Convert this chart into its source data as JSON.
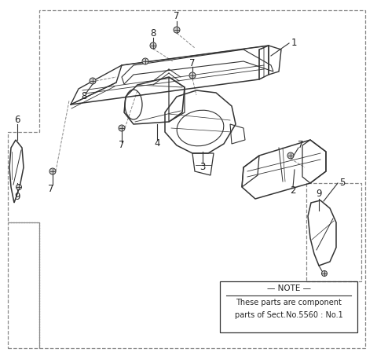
{
  "background_color": "#ffffff",
  "line_color": "#333333",
  "text_color": "#222222",
  "dash_color": "#888888",
  "note_text": [
    "NOTE",
    "These parts are component",
    "parts of Sect.No.5560 : No.1"
  ],
  "figsize": [
    4.8,
    4.53
  ],
  "dpi": 100
}
